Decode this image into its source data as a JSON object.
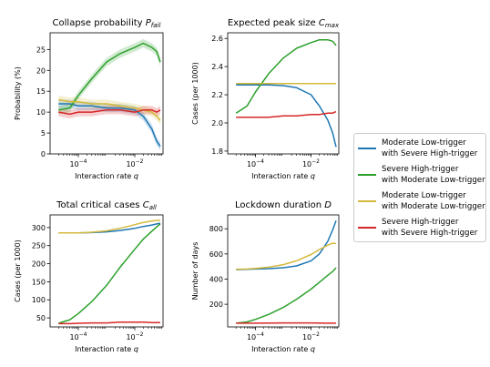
{
  "chart_data": [
    {
      "type": "line",
      "title": "Collapse probability P",
      "title_sub": "fail",
      "xlabel": "Interaction rate q",
      "ylabel": "Probability (%)",
      "xscale": "log",
      "xlim": [
        1e-05,
        0.1
      ],
      "ylim": [
        0,
        29
      ],
      "xticks": [
        0.0001,
        0.01
      ],
      "xtick_labels": [
        [
          "10",
          "−4"
        ],
        [
          "10",
          "−2"
        ]
      ],
      "yticks": [
        0,
        5,
        10,
        15,
        20,
        25
      ],
      "ytick_labels": [
        "0",
        "5",
        "10",
        "15",
        "20",
        "25"
      ],
      "confidence_band": true,
      "series": [
        {
          "name": "Moderate Low-trigger with Severe High-trigger",
          "x": [
            2e-05,
            5e-05,
            0.0001,
            0.0003,
            0.001,
            0.003,
            0.01,
            0.02,
            0.04,
            0.06,
            0.08
          ],
          "values": [
            12,
            12,
            11.5,
            11.5,
            11,
            11,
            10.5,
            9,
            6,
            3,
            1.8
          ]
        },
        {
          "name": "Severe High-trigger with Moderate Low-trigger",
          "x": [
            2e-05,
            5e-05,
            0.0001,
            0.0003,
            0.001,
            0.003,
            0.01,
            0.02,
            0.04,
            0.06,
            0.08
          ],
          "values": [
            10.5,
            11,
            14,
            18,
            22,
            24,
            25.5,
            26.5,
            25.5,
            24.5,
            22
          ]
        },
        {
          "name": "Moderate Low-trigger with Moderate Low-trigger",
          "x": [
            2e-05,
            5e-05,
            0.0001,
            0.0003,
            0.001,
            0.003,
            0.01,
            0.02,
            0.04,
            0.06,
            0.08
          ],
          "values": [
            13,
            12.5,
            12.5,
            12,
            12,
            11.5,
            11,
            10.5,
            10,
            9,
            8
          ]
        },
        {
          "name": "Severe High-trigger with Severe High-trigger",
          "x": [
            2e-05,
            5e-05,
            0.0001,
            0.0003,
            0.001,
            0.003,
            0.01,
            0.02,
            0.04,
            0.06,
            0.08
          ],
          "values": [
            10,
            9.5,
            10,
            10,
            10.5,
            10.5,
            10,
            10.5,
            10.5,
            10,
            10.5
          ]
        }
      ]
    },
    {
      "type": "line",
      "title": "Expected peak size C",
      "title_sub": "max",
      "xlabel": "Interaction rate q",
      "ylabel": "Cases (per 1000)",
      "xscale": "log",
      "xlim": [
        1e-05,
        0.1
      ],
      "ylim": [
        1.78,
        2.64
      ],
      "xticks": [
        0.0001,
        0.01
      ],
      "xtick_labels": [
        [
          "10",
          "−4"
        ],
        [
          "10",
          "−2"
        ]
      ],
      "yticks": [
        1.8,
        2.0,
        2.2,
        2.4,
        2.6
      ],
      "ytick_labels": [
        "1.8",
        "2.0",
        "2.2",
        "2.4",
        "2.6"
      ],
      "series": [
        {
          "name": "Moderate Low-trigger with Severe High-trigger",
          "x": [
            2e-05,
            5e-05,
            0.0001,
            0.0003,
            0.001,
            0.003,
            0.01,
            0.02,
            0.04,
            0.06,
            0.08
          ],
          "values": [
            2.27,
            2.27,
            2.27,
            2.27,
            2.265,
            2.25,
            2.2,
            2.12,
            2.02,
            1.93,
            1.83
          ]
        },
        {
          "name": "Severe High-trigger with Moderate Low-trigger",
          "x": [
            2e-05,
            5e-05,
            0.0001,
            0.0003,
            0.001,
            0.003,
            0.01,
            0.02,
            0.04,
            0.06,
            0.08
          ],
          "values": [
            2.07,
            2.12,
            2.22,
            2.35,
            2.46,
            2.53,
            2.57,
            2.59,
            2.59,
            2.58,
            2.55
          ]
        },
        {
          "name": "Moderate Low-trigger with Moderate Low-trigger",
          "x": [
            2e-05,
            5e-05,
            0.0001,
            0.0003,
            0.001,
            0.003,
            0.01,
            0.02,
            0.04,
            0.06,
            0.08
          ],
          "values": [
            2.28,
            2.28,
            2.28,
            2.28,
            2.28,
            2.28,
            2.28,
            2.28,
            2.28,
            2.28,
            2.28
          ]
        },
        {
          "name": "Severe High-trigger with Severe High-trigger",
          "x": [
            2e-05,
            5e-05,
            0.0001,
            0.0003,
            0.001,
            0.003,
            0.01,
            0.02,
            0.04,
            0.06,
            0.08
          ],
          "values": [
            2.04,
            2.04,
            2.04,
            2.04,
            2.05,
            2.05,
            2.06,
            2.06,
            2.07,
            2.07,
            2.08
          ]
        }
      ]
    },
    {
      "type": "line",
      "title": "Total critical cases C",
      "title_sub": "all",
      "xlabel": "Interaction rate q",
      "ylabel": "Cases (per 1000)",
      "xscale": "log",
      "xlim": [
        1e-05,
        0.1
      ],
      "ylim": [
        25,
        335
      ],
      "xticks": [
        0.0001,
        0.01
      ],
      "xtick_labels": [
        [
          "10",
          "−4"
        ],
        [
          "10",
          "−2"
        ]
      ],
      "yticks": [
        50,
        100,
        150,
        200,
        250,
        300
      ],
      "ytick_labels": [
        "50",
        "100",
        "150",
        "200",
        "250",
        "300"
      ],
      "series": [
        {
          "name": "Moderate Low-trigger with Severe High-trigger",
          "x": [
            2e-05,
            5e-05,
            0.0001,
            0.0003,
            0.001,
            0.003,
            0.01,
            0.02,
            0.04,
            0.06,
            0.08
          ],
          "values": [
            285,
            285,
            285,
            286,
            288,
            292,
            298,
            303,
            307,
            310,
            312
          ]
        },
        {
          "name": "Severe High-trigger with Moderate Low-trigger",
          "x": [
            2e-05,
            5e-05,
            0.0001,
            0.0003,
            0.001,
            0.003,
            0.01,
            0.02,
            0.04,
            0.06,
            0.08
          ],
          "values": [
            35,
            45,
            62,
            95,
            140,
            190,
            240,
            268,
            290,
            302,
            310
          ]
        },
        {
          "name": "Moderate Low-trigger with Moderate Low-trigger",
          "x": [
            2e-05,
            5e-05,
            0.0001,
            0.0003,
            0.001,
            0.003,
            0.01,
            0.02,
            0.04,
            0.06,
            0.08
          ],
          "values": [
            285,
            285,
            285,
            287,
            291,
            298,
            308,
            314,
            318,
            320,
            320
          ]
        },
        {
          "name": "Severe High-trigger with Severe High-trigger",
          "x": [
            2e-05,
            5e-05,
            0.0001,
            0.0003,
            0.001,
            0.003,
            0.01,
            0.02,
            0.04,
            0.06,
            0.08
          ],
          "values": [
            34,
            34,
            35,
            36,
            36,
            38,
            38,
            38,
            37,
            37,
            37
          ]
        }
      ]
    },
    {
      "type": "line",
      "title": "Lockdown duration D",
      "xlabel": "Interaction rate q",
      "ylabel": "Number of days",
      "xscale": "log",
      "xlim": [
        1e-05,
        0.1
      ],
      "ylim": [
        20,
        910
      ],
      "xticks": [
        0.0001,
        0.01
      ],
      "xtick_labels": [
        [
          "10",
          "−4"
        ],
        [
          "10",
          "−2"
        ]
      ],
      "yticks": [
        200,
        400,
        600,
        800
      ],
      "ytick_labels": [
        "200",
        "400",
        "600",
        "800"
      ],
      "series": [
        {
          "name": "Moderate Low-trigger with Severe High-trigger",
          "x": [
            2e-05,
            5e-05,
            0.0001,
            0.0003,
            0.001,
            0.003,
            0.01,
            0.02,
            0.04,
            0.06,
            0.08
          ],
          "values": [
            475,
            478,
            480,
            483,
            490,
            505,
            545,
            600,
            700,
            790,
            865
          ]
        },
        {
          "name": "Severe High-trigger with Moderate Low-trigger",
          "x": [
            2e-05,
            5e-05,
            0.0001,
            0.0003,
            0.001,
            0.003,
            0.01,
            0.02,
            0.04,
            0.06,
            0.08
          ],
          "values": [
            50,
            60,
            80,
            120,
            175,
            240,
            320,
            375,
            430,
            460,
            490
          ]
        },
        {
          "name": "Moderate Low-trigger with Moderate Low-trigger",
          "x": [
            2e-05,
            5e-05,
            0.0001,
            0.0003,
            0.001,
            0.003,
            0.01,
            0.02,
            0.04,
            0.06,
            0.08
          ],
          "values": [
            478,
            480,
            485,
            495,
            515,
            545,
            595,
            635,
            670,
            685,
            683
          ]
        },
        {
          "name": "Severe High-trigger with Severe High-trigger",
          "x": [
            2e-05,
            5e-05,
            0.0001,
            0.0003,
            0.001,
            0.003,
            0.01,
            0.02,
            0.04,
            0.06,
            0.08
          ],
          "values": [
            50,
            50,
            50,
            51,
            52,
            52,
            52,
            51,
            50,
            50,
            50
          ]
        }
      ]
    }
  ],
  "legend": {
    "placement": "right",
    "entries": [
      {
        "line1": "Moderate Low-trigger",
        "line2": "with Severe High-trigger",
        "color": "#1f77b4"
      },
      {
        "line1": "Severe High-trigger",
        "line2": "with Moderate Low-trigger",
        "color": "#2ca02c"
      },
      {
        "line1": "Moderate Low-trigger",
        "line2": "with Moderate Low-trigger",
        "color": "#d4b93c"
      },
      {
        "line1": "Severe High-trigger",
        "line2": "with Severe High-trigger",
        "color": "#d62728"
      }
    ]
  },
  "colors": [
    "#1f77b4",
    "#2ca02c",
    "#d4b93c",
    "#d62728"
  ]
}
